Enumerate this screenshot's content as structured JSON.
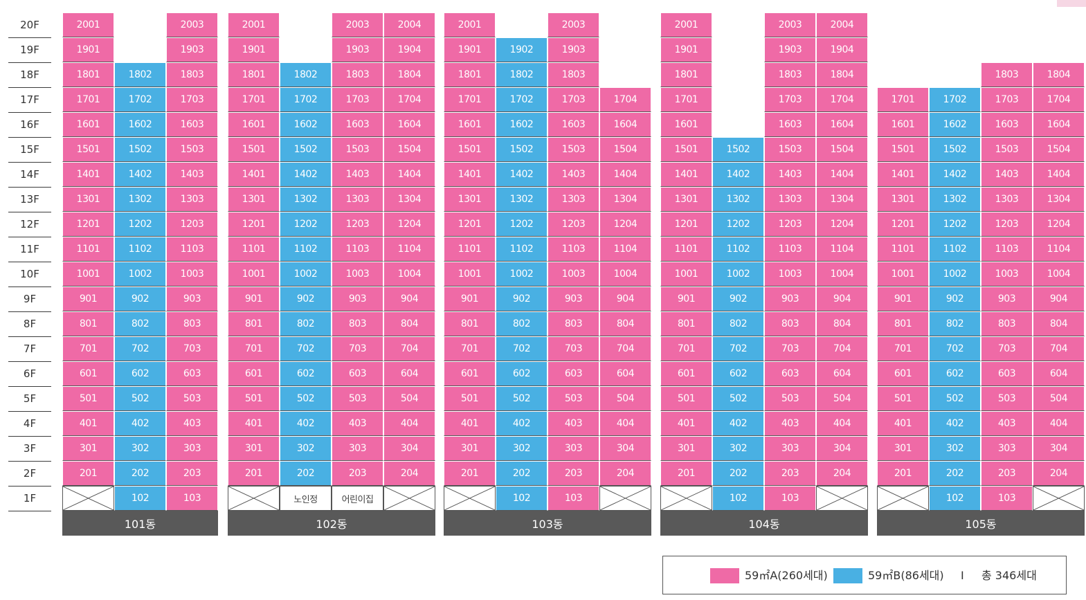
{
  "floors": [
    "20F",
    "19F",
    "18F",
    "17F",
    "16F",
    "15F",
    "14F",
    "13F",
    "12F",
    "11F",
    "10F",
    "9F",
    "8F",
    "7F",
    "6F",
    "5F",
    "4F",
    "3F",
    "2F",
    "1F"
  ],
  "colors": {
    "type_A": "#ef6aa6",
    "type_B": "#49b0e3",
    "label_bar": "#595959"
  },
  "buildings": [
    {
      "name": "101동",
      "columns": [
        {
          "type": "A",
          "top_floor": 20,
          "unit": "01",
          "first_floor": "empty"
        },
        {
          "type": "B",
          "top_floor": 18,
          "unit": "02",
          "first_floor": "unit"
        },
        {
          "type": "A",
          "top_floor": 20,
          "unit": "03",
          "first_floor": "unit"
        }
      ]
    },
    {
      "name": "102동",
      "columns": [
        {
          "type": "A",
          "top_floor": 20,
          "unit": "01",
          "first_floor": "empty"
        },
        {
          "type": "B",
          "top_floor": 18,
          "unit": "02",
          "first_floor": "facility",
          "facility": "노인정"
        },
        {
          "type": "A",
          "top_floor": 20,
          "unit": "03",
          "first_floor": "facility",
          "facility": "어린이집"
        },
        {
          "type": "A",
          "top_floor": 20,
          "unit": "04",
          "first_floor": "empty"
        }
      ]
    },
    {
      "name": "103동",
      "columns": [
        {
          "type": "A",
          "top_floor": 20,
          "unit": "01",
          "first_floor": "empty"
        },
        {
          "type": "B",
          "top_floor": 19,
          "unit": "02",
          "first_floor": "unit"
        },
        {
          "type": "A",
          "top_floor": 20,
          "unit": "03",
          "first_floor": "unit"
        },
        {
          "type": "A",
          "top_floor": 17,
          "unit": "04",
          "first_floor": "empty"
        }
      ]
    },
    {
      "name": "104동",
      "columns": [
        {
          "type": "A",
          "top_floor": 20,
          "unit": "01",
          "first_floor": "empty"
        },
        {
          "type": "B",
          "top_floor": 15,
          "unit": "02",
          "first_floor": "unit"
        },
        {
          "type": "A",
          "top_floor": 20,
          "unit": "03",
          "first_floor": "unit"
        },
        {
          "type": "A",
          "top_floor": 20,
          "unit": "04",
          "first_floor": "empty"
        }
      ]
    },
    {
      "name": "105동",
      "columns": [
        {
          "type": "A",
          "top_floor": 17,
          "unit": "01",
          "first_floor": "empty"
        },
        {
          "type": "B",
          "top_floor": 17,
          "unit": "02",
          "first_floor": "unit"
        },
        {
          "type": "A",
          "top_floor": 18,
          "unit": "03",
          "first_floor": "unit"
        },
        {
          "type": "A",
          "top_floor": 18,
          "unit": "04",
          "first_floor": "empty"
        }
      ]
    }
  ],
  "legend": {
    "type_a_label": "59㎡A(260세대)",
    "type_b_label": "59㎡B(86세대)",
    "separator": "I",
    "total_label": "총 346세대"
  }
}
